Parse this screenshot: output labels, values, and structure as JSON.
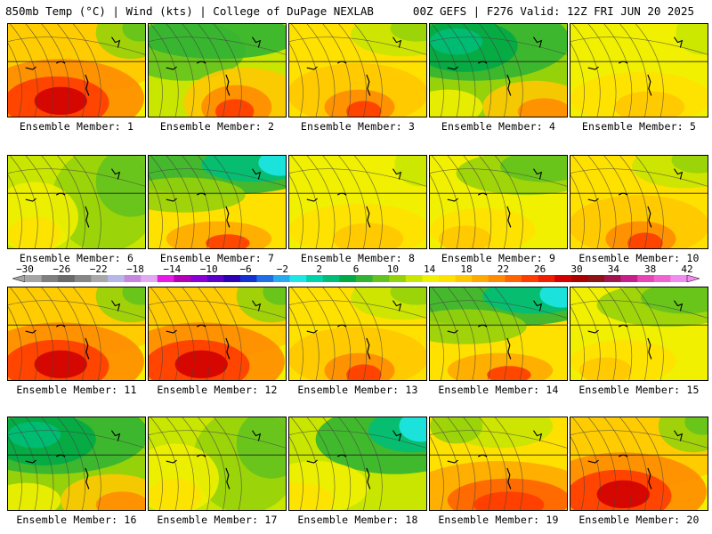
{
  "header": {
    "left": "850mb Temp (°C) | Wind (kts) | College of DuPage NEXLAB",
    "right": "00Z GEFS | F276 Valid: 12Z FRI JUN 20 2025"
  },
  "colorbar": {
    "labels": [
      "−30",
      "−26",
      "−22",
      "−18",
      "−14",
      "−10",
      "−6",
      "−2",
      "2",
      "6",
      "10",
      "14",
      "18",
      "22",
      "26",
      "30",
      "34",
      "38",
      "42"
    ],
    "colors": [
      "#a5a5a5",
      "#7f7f7f",
      "#6a6a6a",
      "#868686",
      "#a8a8a8",
      "#b6b6e8",
      "#c586dd",
      "#e1aaf0",
      "#e61ae6",
      "#b400b4",
      "#8a00d4",
      "#5a00c8",
      "#2d00b4",
      "#1432d2",
      "#1e6ee6",
      "#28aaf0",
      "#1ee6e6",
      "#00d2aa",
      "#00be78",
      "#00aa46",
      "#32b432",
      "#64c31e",
      "#96d20a",
      "#c8e600",
      "#f0f000",
      "#ffe100",
      "#ffc800",
      "#ffaa00",
      "#ff8c00",
      "#ff6400",
      "#ff3c00",
      "#f01e00",
      "#d20000",
      "#aa0000",
      "#8c1414",
      "#a01450",
      "#c81e8c",
      "#e646b4",
      "#f064d2",
      "#f08cf0"
    ]
  },
  "panels": [
    {
      "label": "Ensemble Member: 1",
      "style": "hot"
    },
    {
      "label": "Ensemble Member: 2",
      "style": "coolnw"
    },
    {
      "label": "Ensemble Member: 3",
      "style": "warm"
    },
    {
      "label": "Ensemble Member: 4",
      "style": "coolwide"
    },
    {
      "label": "Ensemble Member: 5",
      "style": "mild"
    },
    {
      "label": "Ensemble Member: 6",
      "style": "cooleast"
    },
    {
      "label": "Ensemble Member: 7",
      "style": "coolnorth"
    },
    {
      "label": "Ensemble Member: 8",
      "style": "mild"
    },
    {
      "label": "Ensemble Member: 9",
      "style": "mildgreen"
    },
    {
      "label": "Ensemble Member: 10",
      "style": "warm"
    },
    {
      "label": "Ensemble Member: 11",
      "style": "hot"
    },
    {
      "label": "Ensemble Member: 12",
      "style": "hot"
    },
    {
      "label": "Ensemble Member: 13",
      "style": "warm"
    },
    {
      "label": "Ensemble Member: 14",
      "style": "coolnorth"
    },
    {
      "label": "Ensemble Member: 15",
      "style": "mildgreen"
    },
    {
      "label": "Ensemble Member: 16",
      "style": "coolwide"
    },
    {
      "label": "Ensemble Member: 17",
      "style": "cooleast"
    },
    {
      "label": "Ensemble Member: 18",
      "style": "coldne"
    },
    {
      "label": "Ensemble Member: 19",
      "style": "hotsouth"
    },
    {
      "label": "Ensemble Member: 20",
      "style": "hot"
    }
  ]
}
